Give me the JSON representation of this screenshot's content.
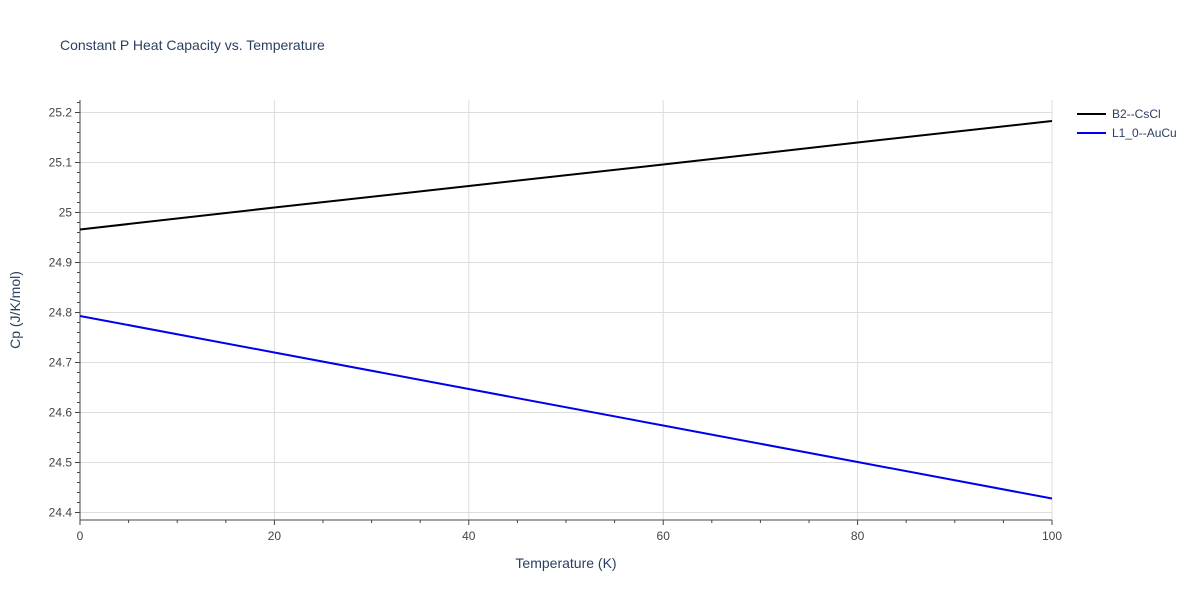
{
  "chart_data": {
    "type": "line",
    "title": "Constant P Heat Capacity vs. Temperature",
    "xlabel": "Temperature (K)",
    "ylabel": "Cp (J/K/mol)",
    "xlim": [
      0,
      100
    ],
    "ylim": [
      24.385,
      25.225
    ],
    "x_ticks": [
      0,
      20,
      40,
      60,
      80,
      100
    ],
    "y_ticks": [
      24.4,
      24.5,
      24.6,
      24.7,
      24.8,
      24.9,
      25,
      25.1,
      25.2
    ],
    "grid": true,
    "legend_position": "top-right",
    "series": [
      {
        "name": "B2--CsCl",
        "color": "#000000",
        "x": [
          0,
          20,
          40,
          60,
          80,
          100
        ],
        "y": [
          24.966,
          25.01,
          25.053,
          25.096,
          25.14,
          25.183
        ]
      },
      {
        "name": "L1_0--AuCu",
        "color": "#0000ee",
        "x": [
          0,
          20,
          40,
          60,
          80,
          100
        ],
        "y": [
          24.793,
          24.72,
          24.647,
          24.574,
          24.501,
          24.428
        ]
      }
    ]
  }
}
